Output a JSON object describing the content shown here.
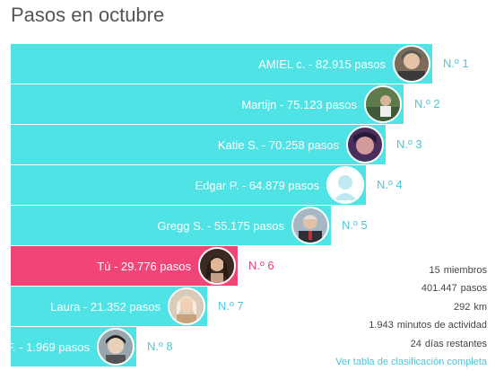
{
  "title": "Pasos en octubre",
  "colors": {
    "bar": "#50e3e6",
    "you": "#f24577",
    "rank_text": "#4ec5d6",
    "you_rank": "#e83f71"
  },
  "leaderboard": [
    {
      "label": "AMIEL c. - 82.915 pasos",
      "rank": "N.º 1",
      "steps": 82915,
      "you": false,
      "avatar": "avatar-1"
    },
    {
      "label": "Martijn - 75.123 pasos",
      "rank": "N.º 2",
      "steps": 75123,
      "you": false,
      "avatar": "avatar-2"
    },
    {
      "label": "Katie S. - 70.258 pasos",
      "rank": "N.º 3",
      "steps": 70258,
      "you": false,
      "avatar": "avatar-3"
    },
    {
      "label": "Edgar P. - 64.879 pasos",
      "rank": "N.º 4",
      "steps": 64879,
      "you": false,
      "avatar": "default-avatar"
    },
    {
      "label": "Gregg S. - 55.175 pasos",
      "rank": "N.º 5",
      "steps": 55175,
      "you": false,
      "avatar": "avatar-5"
    },
    {
      "label": "Tú - 29.776 pasos",
      "rank": "N.º 6",
      "steps": 29776,
      "you": true,
      "avatar": "avatar-you"
    },
    {
      "label": "Laura - 21.352 pasos",
      "rank": "N.º 7",
      "steps": 21352,
      "you": false,
      "avatar": "avatar-7"
    },
    {
      "label": "F. - 1.969 pasos",
      "rank": "N.º 8",
      "steps": 1969,
      "you": false,
      "avatar": "avatar-8"
    }
  ],
  "stats": {
    "members_value": "15",
    "members_label": "miembros",
    "steps_value": "401.447",
    "steps_label": "pasos",
    "km_value": "292",
    "km_label": "km",
    "minutes_value": "1.943",
    "minutes_label": "minutos de actividad",
    "days_value": "24",
    "days_label": "días restantes",
    "link": "Ver tabla de clasificación completa"
  }
}
